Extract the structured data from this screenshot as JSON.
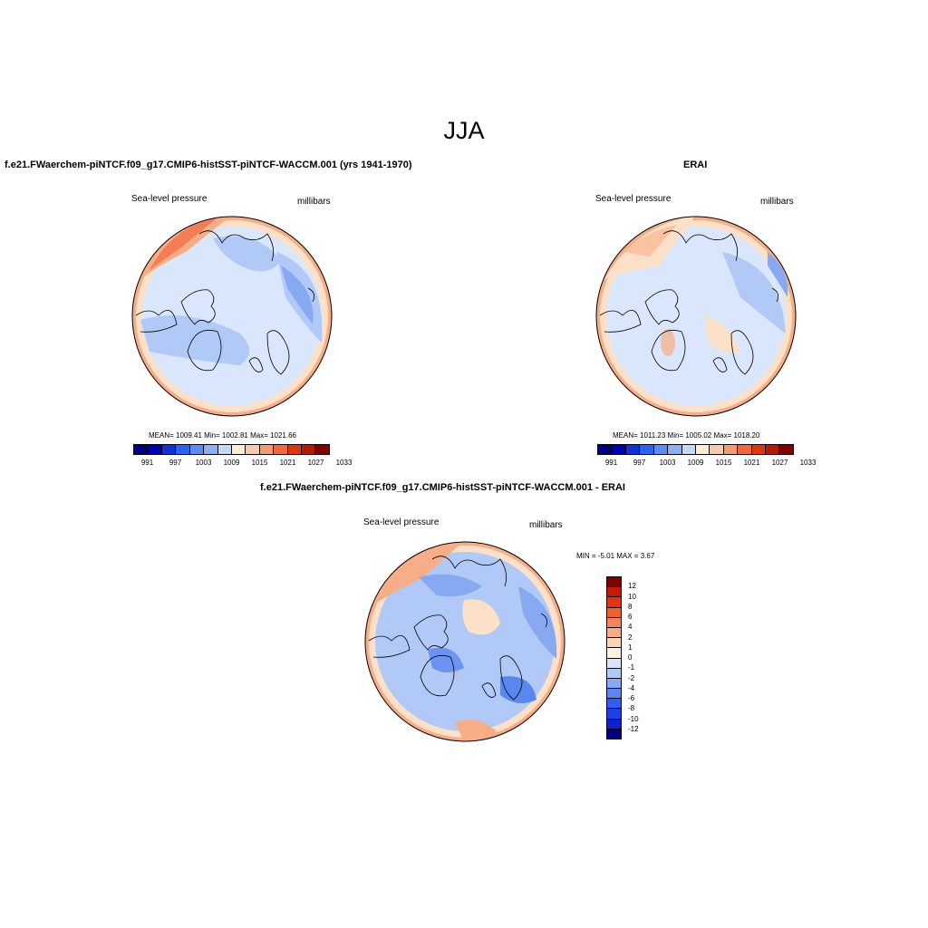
{
  "main_title": "JJA",
  "panels": {
    "left": {
      "title": "f.e21.FWaerchem-piNTCF.f09_g17.CMIP6-histSST-piNTCF-WACCM.001 (yrs 1941-1970)",
      "variable": "Sea-level pressure",
      "units": "millibars",
      "stats": "MEAN= 1009.41   Min= 1002.81   Max= 1021.66"
    },
    "right": {
      "title": "ERAI",
      "variable": "Sea-level pressure",
      "units": "millibars",
      "stats": "MEAN= 1011.23   Min= 1005.02   Max= 1018.20"
    },
    "diff": {
      "title": "f.e21.FWaerchem-piNTCF.f09_g17.CMIP6-histSST-piNTCF-WACCM.001 - ERAI",
      "variable": "Sea-level pressure",
      "units": "millibars",
      "stats": "MIN =  -5.01 MAX =   3.67"
    }
  },
  "colorbar_abs": {
    "colors": [
      "#00007f",
      "#0000b3",
      "#0d33d9",
      "#2966f0",
      "#5a8cf2",
      "#8cb0f5",
      "#c3d9fb",
      "#fcecd8",
      "#fbc8a8",
      "#f59a76",
      "#f1683f",
      "#e3330f",
      "#b31a00",
      "#800000"
    ],
    "tick_labels": [
      "991",
      "997",
      "1003",
      "1009",
      "1015",
      "1021",
      "1027",
      "1033"
    ]
  },
  "colorbar_diff": {
    "colors": [
      "#800000",
      "#c41a00",
      "#e3330f",
      "#f2602e",
      "#f4875a",
      "#f7ad86",
      "#fad6b5",
      "#fdf0e4",
      "#d9e6fb",
      "#b0c9f7",
      "#86a9f2",
      "#5a86ef",
      "#2e5ff0",
      "#1a40e6",
      "#0d20cc",
      "#00007f"
    ],
    "tick_labels": [
      "12",
      "10",
      "8",
      "6",
      "4",
      "2",
      "1",
      "0",
      "-1",
      "-2",
      "-4",
      "-6",
      "-8",
      "-10",
      "-12"
    ]
  },
  "map_colors": {
    "ocean_light": "#d9e6fb",
    "blue_mid": "#b0c9f7",
    "blue_dark": "#86a9f2",
    "blue_deep": "#5a86ef",
    "peach": "#fde0c8",
    "salmon": "#f7ad86",
    "orange": "#f1683f",
    "coast": "#000000"
  }
}
